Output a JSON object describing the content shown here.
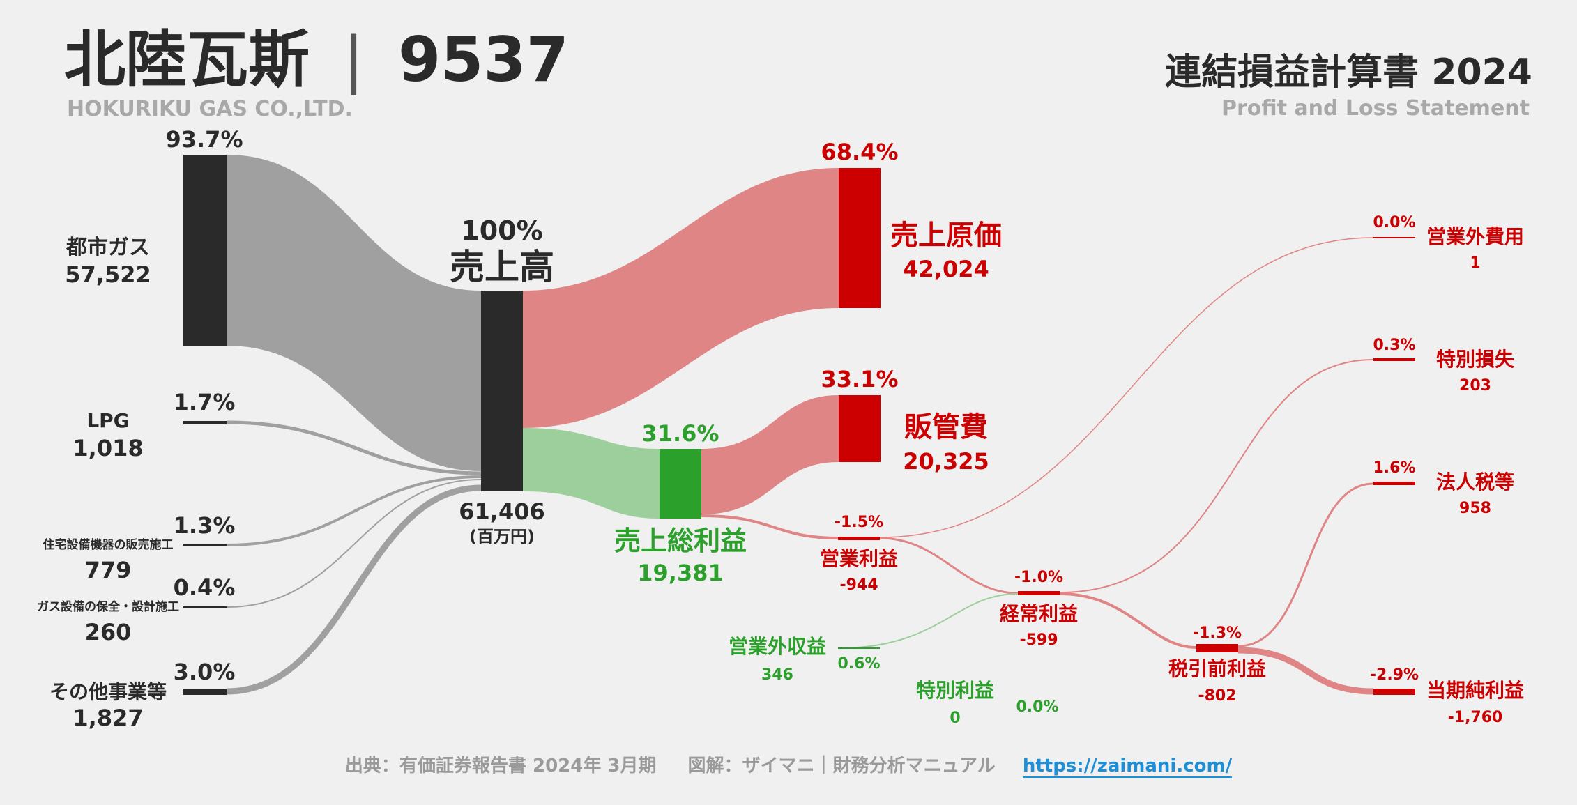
{
  "header": {
    "company": "北陸瓦斯",
    "ticker": "9537",
    "company_en": "HOKURIKU GAS CO.,LTD.",
    "statement_title": "連結損益計算書 2024",
    "statement_title_en": "Profit and Loss Statement"
  },
  "footer": {
    "source": "出典：有価証券報告書 2024年 3月期",
    "credit": "図解：ザイマニ｜財務分析マニュアル",
    "url": "https://zaimani.com/"
  },
  "colors": {
    "dark": "#2a2a2a",
    "gray_flow": "#a0a0a0",
    "red": "#cc0000",
    "red_flow": "#e08585",
    "green": "#2ba02b",
    "green_flow": "#9dcf9d"
  },
  "chart_data": {
    "type": "sankey",
    "unit": "(百万円)",
    "revenue_segments": [
      {
        "name": "都市ガス",
        "value": "57,522",
        "pct": "93.7%"
      },
      {
        "name": "LPG",
        "value": "1,018",
        "pct": "1.7%"
      },
      {
        "name": "住宅設備機器の販売施工",
        "value": "779",
        "pct": "1.3%"
      },
      {
        "name": "ガス設備の保全・設計施工",
        "value": "260",
        "pct": "0.4%"
      },
      {
        "name": "その他事業等",
        "value": "1,827",
        "pct": "3.0%"
      }
    ],
    "revenue": {
      "name": "売上高",
      "value": "61,406",
      "pct": "100%"
    },
    "cost_of_sales": {
      "name": "売上原価",
      "value": "42,024",
      "pct": "68.4%"
    },
    "gross_profit": {
      "name": "売上総利益",
      "value": "19,381",
      "pct": "31.6%"
    },
    "sga": {
      "name": "販管費",
      "value": "20,325",
      "pct": "33.1%"
    },
    "operating_income": {
      "name": "営業利益",
      "value": "-944",
      "pct": "-1.5%"
    },
    "non_operating_income": {
      "name": "営業外収益",
      "value": "346",
      "pct": "0.6%"
    },
    "non_operating_expense": {
      "name": "営業外費用",
      "value": "1",
      "pct": "0.0%"
    },
    "ordinary_income": {
      "name": "経常利益",
      "value": "-599",
      "pct": "-1.0%"
    },
    "extraordinary_income": {
      "name": "特別利益",
      "value": "0",
      "pct": "0.0%"
    },
    "extraordinary_loss": {
      "name": "特別損失",
      "value": "203",
      "pct": "0.3%"
    },
    "pretax_income": {
      "name": "税引前利益",
      "value": "-802",
      "pct": "-1.3%"
    },
    "income_taxes": {
      "name": "法人税等",
      "value": "958",
      "pct": "1.6%"
    },
    "net_income": {
      "name": "当期純利益",
      "value": "-1,760",
      "pct": "-2.9%"
    }
  }
}
